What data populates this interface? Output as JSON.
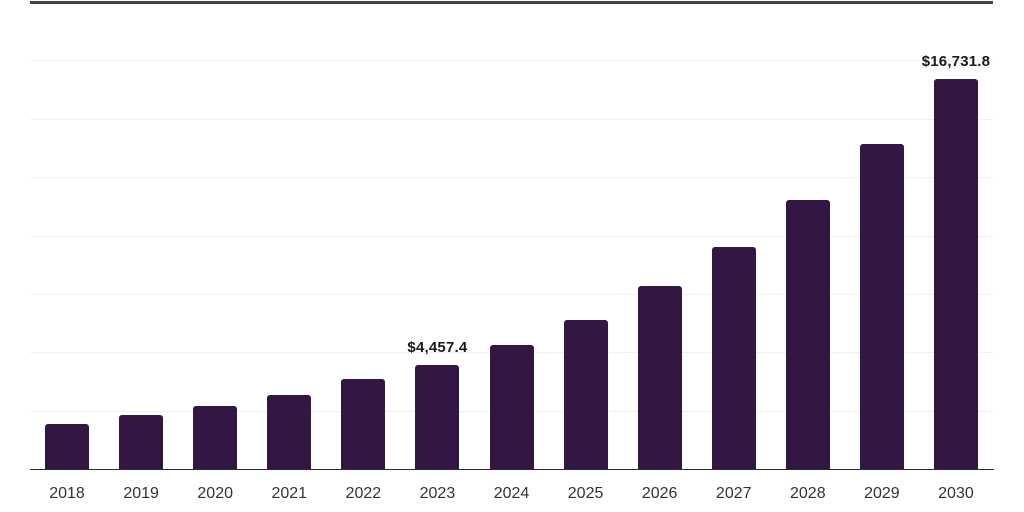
{
  "chart_data": {
    "type": "bar",
    "categories": [
      "2018",
      "2019",
      "2020",
      "2021",
      "2022",
      "2023",
      "2024",
      "2025",
      "2026",
      "2027",
      "2028",
      "2029",
      "2030"
    ],
    "values": [
      1950,
      2330,
      2715,
      3190,
      3870,
      4457.4,
      5350,
      6400,
      7850,
      9520,
      11530,
      13930,
      16731.8
    ],
    "data_labels": [
      {
        "category": "2023",
        "text": "$4,457.4"
      },
      {
        "category": "2030",
        "text": "$16,731.8"
      }
    ],
    "title": "",
    "xlabel": "",
    "ylabel": "",
    "ylim": [
      0,
      20000
    ],
    "ytick_interval": 2500,
    "y_axis_labels_visible": false,
    "grid": "horizontal light gridlines",
    "legend": "none",
    "value_prefix": "$"
  },
  "colors": {
    "background": "#FFFFFF",
    "bar": "#321745",
    "gridline": "#F0F0F0",
    "axis_line": "#2B2B2B",
    "top_border": "#444444",
    "data_label": "#1A1A1A",
    "tick_label": "#333333"
  }
}
